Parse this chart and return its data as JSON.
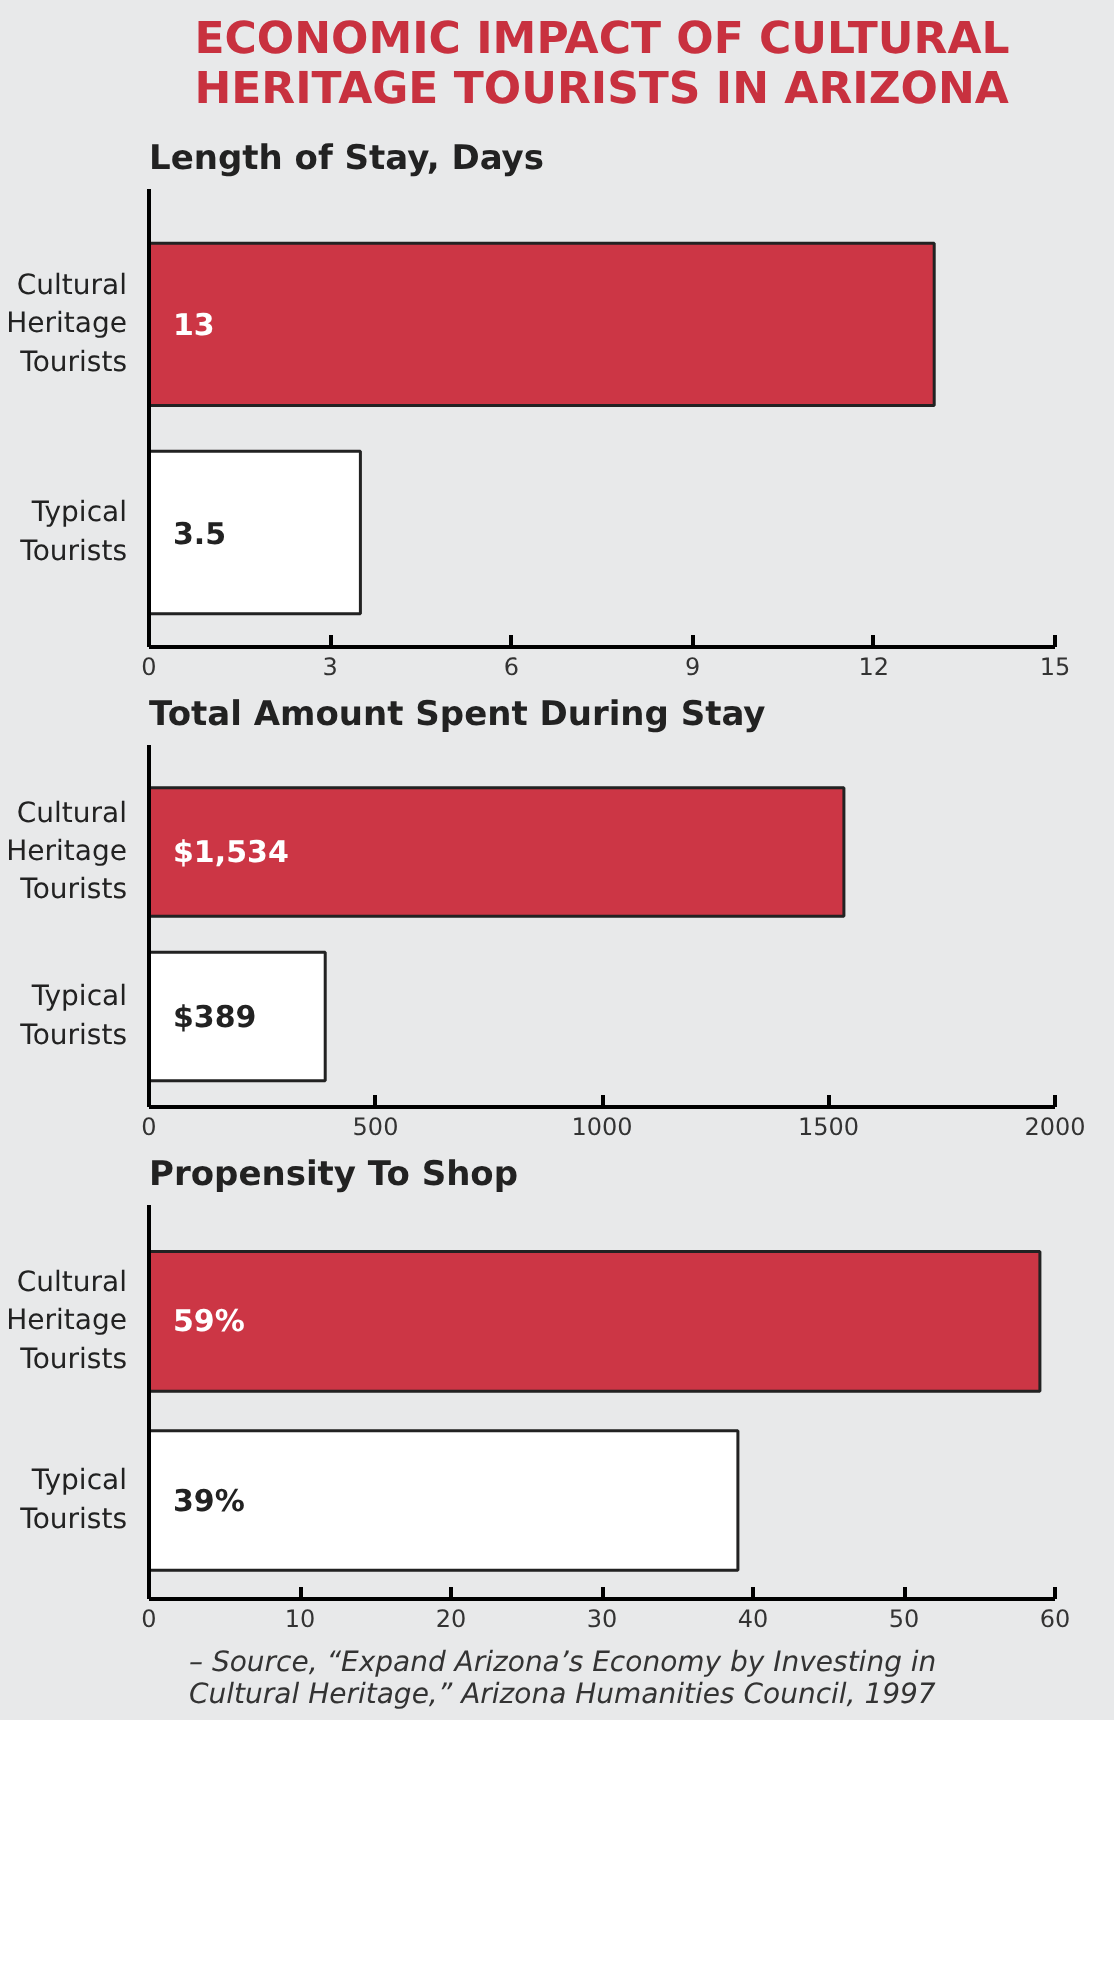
{
  "chart_data": [
    {
      "type": "bar",
      "orientation": "horizontal",
      "title": "ECONOMIC IMPACT OF CULTURAL HERITAGE TOURISTS IN ARIZONA",
      "subtitle": "Length of Stay, Days",
      "categories": [
        "Cultural Heritage Tourists",
        "Typical Tourists"
      ],
      "values": [
        13,
        3.5
      ],
      "colors": [
        "#cc3645",
        "#ffffff"
      ],
      "value_labels": [
        "13",
        "3.5"
      ],
      "xlim": [
        0,
        15
      ],
      "xticks": [
        0,
        3,
        6,
        9,
        12,
        15
      ]
    },
    {
      "type": "bar",
      "orientation": "horizontal",
      "title": "Total Amount Spent During Stay",
      "categories": [
        "Cultural Heritage Tourists",
        "Typical Tourists"
      ],
      "values": [
        1534,
        389
      ],
      "colors": [
        "#cc3645",
        "#ffffff"
      ],
      "value_labels": [
        "$1,534",
        "$389"
      ],
      "xlim": [
        0,
        2000
      ],
      "xticks": [
        0,
        500,
        1000,
        1500,
        2000
      ]
    },
    {
      "type": "bar",
      "orientation": "horizontal",
      "title": "Propensity To Shop",
      "categories": [
        "Cultural Heritage Tourists",
        "Typical Tourists"
      ],
      "values": [
        59,
        39
      ],
      "colors": [
        "#cc3645",
        "#ffffff"
      ],
      "value_labels": [
        "59%",
        "39%"
      ],
      "xlim": [
        0,
        60
      ],
      "xticks": [
        0,
        10,
        20,
        30,
        40,
        50,
        60
      ],
      "annotations": [
        "– Source, “Expand Arizona’s Economy by Investing in Cultural Heritage,” Arizona Humanities Council, 1997"
      ]
    }
  ]
}
